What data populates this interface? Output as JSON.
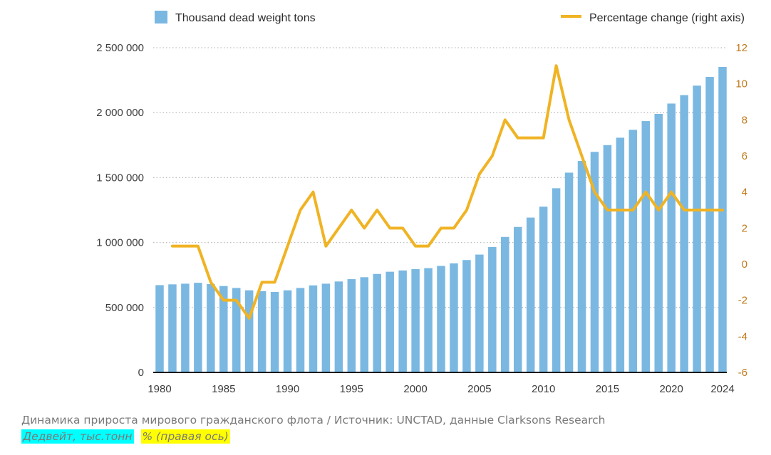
{
  "chart_data": {
    "type": "bar",
    "title": "",
    "xlabel": "",
    "ylabel": "",
    "ylim": [
      0,
      2500000
    ],
    "y2lim": [
      -6,
      12
    ],
    "grid": "horizontal dotted",
    "legend_position": "top",
    "colors": {
      "bars": "#7ab8e2",
      "line": "#f0b323",
      "right_axis": "#c17a1b"
    },
    "left_ticks": [
      "0",
      "500 000",
      "1 000 000",
      "1 500 000",
      "2 000 000",
      "2 500 000"
    ],
    "right_ticks": [
      "-6",
      "-4",
      "-2",
      "0",
      "2",
      "4",
      "6",
      "8",
      "10",
      "12"
    ],
    "x_tick_labels": [
      "1980",
      "1985",
      "1990",
      "1995",
      "2000",
      "2005",
      "2010",
      "2015",
      "2020",
      "2024"
    ],
    "legend": {
      "bars": "Thousand dead weight tons",
      "line": "Percentage change (right axis)"
    },
    "x": [
      1980,
      1981,
      1982,
      1983,
      1984,
      1985,
      1986,
      1987,
      1988,
      1989,
      1990,
      1991,
      1992,
      1993,
      1994,
      1995,
      1996,
      1997,
      1998,
      1999,
      2000,
      2001,
      2002,
      2003,
      2004,
      2005,
      2006,
      2007,
      2008,
      2009,
      2010,
      2011,
      2012,
      2013,
      2014,
      2015,
      2016,
      2017,
      2018,
      2019,
      2020,
      2021,
      2022,
      2023,
      2024
    ],
    "series": [
      {
        "name": "Thousand dead weight tons",
        "type": "bar",
        "axis": "left",
        "values": [
          672000,
          678000,
          683000,
          690000,
          680000,
          665000,
          650000,
          632000,
          625000,
          620000,
          632000,
          650000,
          670000,
          683000,
          700000,
          718000,
          733000,
          758000,
          775000,
          785000,
          795000,
          803000,
          820000,
          840000,
          865000,
          907000,
          965000,
          1043000,
          1120000,
          1192000,
          1276000,
          1418000,
          1538000,
          1628000,
          1698000,
          1750000,
          1807000,
          1868000,
          1935000,
          1990000,
          2070000,
          2135000,
          2208000,
          2275000,
          2352000
        ]
      },
      {
        "name": "Percentage change (right axis)",
        "type": "line",
        "axis": "right",
        "x": [
          1981,
          1982,
          1983,
          1984,
          1985,
          1986,
          1987,
          1988,
          1989,
          1990,
          1991,
          1992,
          1993,
          1994,
          1995,
          1996,
          1997,
          1998,
          1999,
          2000,
          2001,
          2002,
          2003,
          2004,
          2005,
          2006,
          2007,
          2008,
          2009,
          2010,
          2011,
          2012,
          2013,
          2014,
          2015,
          2016,
          2017,
          2018,
          2019,
          2020,
          2021,
          2022,
          2023,
          2024
        ],
        "values": [
          1,
          1,
          1,
          -1,
          -2,
          -2,
          -3,
          -1,
          -1,
          1,
          3,
          4,
          1,
          2,
          3,
          2,
          3,
          2,
          2,
          1,
          1,
          2,
          2,
          3,
          5,
          6,
          8,
          7,
          7,
          7,
          11,
          8,
          6,
          4,
          3,
          3,
          3,
          4,
          3,
          4,
          3,
          3,
          3,
          3
        ]
      }
    ]
  },
  "caption": {
    "text": "Динамика прироста мирового гражданского флота / Источник: UNCTAD, данные Clarksons Research",
    "tag_bars": "Дедвейт, тыс.тонн",
    "tag_line": "% (правая ось)"
  }
}
